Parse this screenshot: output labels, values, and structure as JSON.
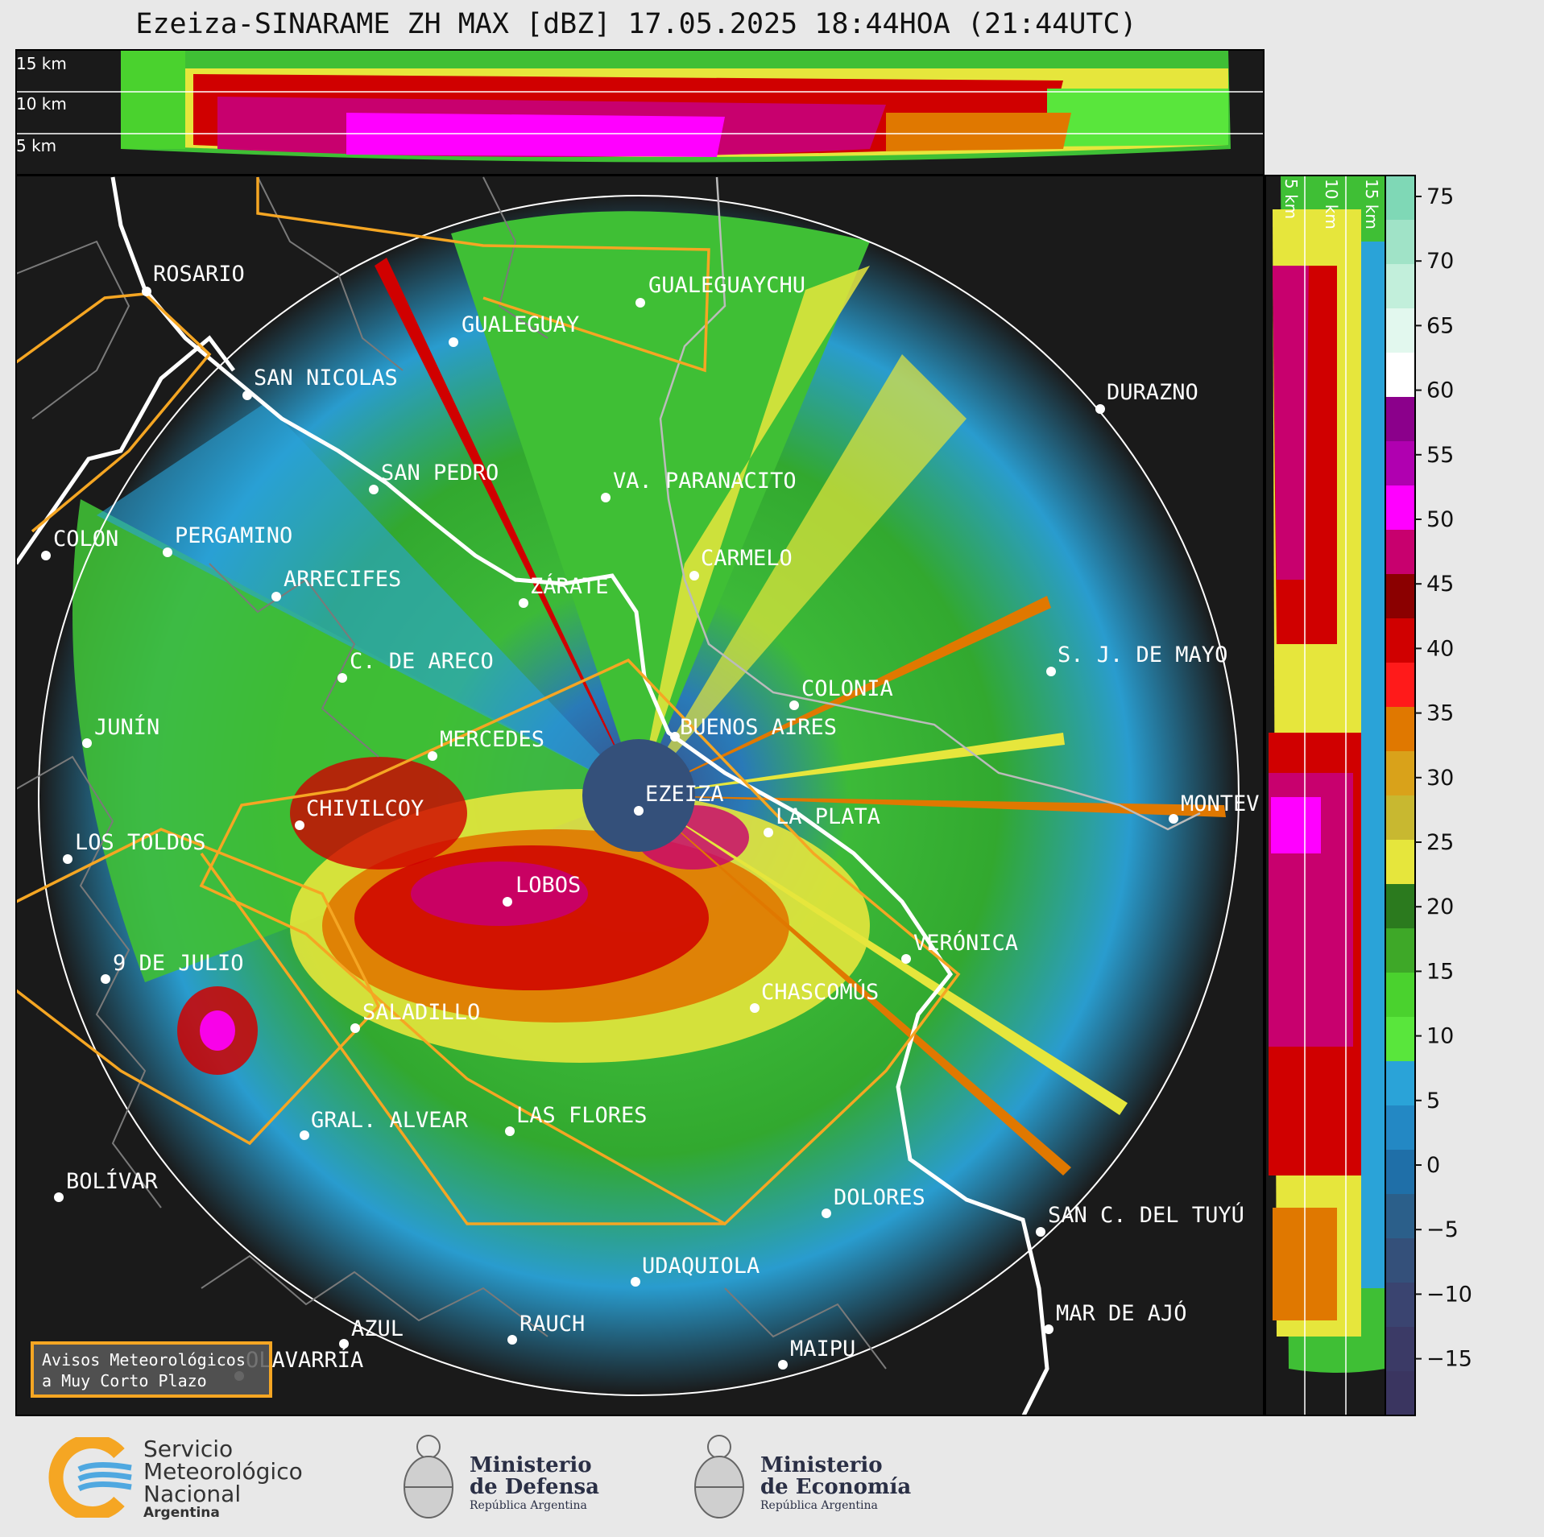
{
  "title": "Ezeiza-SINARAME ZH MAX [dBZ] 17.05.2025 18:44HOA (21:44UTC)",
  "height_labels_top": [
    "15 km",
    "10 km",
    "5 km"
  ],
  "height_labels_side": [
    "5 km",
    "10 km",
    "15 km"
  ],
  "colorbar": {
    "ticks": [
      "75",
      "70",
      "65",
      "60",
      "55",
      "50",
      "45",
      "40",
      "35",
      "30",
      "25",
      "20",
      "15",
      "10",
      "5",
      "0",
      "−5",
      "−10",
      "−15"
    ],
    "colors_top_to_bottom": [
      "#7fd8b6",
      "#a0e3c7",
      "#c2efdb",
      "#e2f8ee",
      "#ffffff",
      "#8b008b",
      "#b000b0",
      "#ff00ff",
      "#c8006e",
      "#8b0000",
      "#d00000",
      "#ff1a1a",
      "#e07800",
      "#d9a21a",
      "#c8b830",
      "#e6e63c",
      "#2b7a1e",
      "#3ea828",
      "#4ad22e",
      "#59e63c",
      "#2aa3d8",
      "#2388c4",
      "#1f6fa8",
      "#2b5f8a",
      "#34507a",
      "#3a4470",
      "#3b3a66",
      "#3a3560"
    ]
  },
  "cities": [
    {
      "name": "ROSARIO"
    },
    {
      "name": "GUALEGUAYCHU"
    },
    {
      "name": "GUALEGUAY"
    },
    {
      "name": "SAN NICOLAS"
    },
    {
      "name": "DURAZNO"
    },
    {
      "name": "SAN PEDRO"
    },
    {
      "name": "VA. PARANACITO"
    },
    {
      "name": "COLON"
    },
    {
      "name": "PERGAMINO"
    },
    {
      "name": "CARMELO"
    },
    {
      "name": "ARRECIFES"
    },
    {
      "name": "ZÁRATE"
    },
    {
      "name": "S. J. DE MAYO"
    },
    {
      "name": "C. DE ARECO"
    },
    {
      "name": "COLONIA"
    },
    {
      "name": "JUNÍN"
    },
    {
      "name": "BUENOS AIRES"
    },
    {
      "name": "MERCEDES"
    },
    {
      "name": "EZEIZA"
    },
    {
      "name": "MONTEV"
    },
    {
      "name": "CHIVILCOY"
    },
    {
      "name": "LA PLATA"
    },
    {
      "name": "LOS TOLDOS"
    },
    {
      "name": "LOBOS"
    },
    {
      "name": "VERÓNICA"
    },
    {
      "name": "9 DE JULIO"
    },
    {
      "name": "CHASCOMÚS"
    },
    {
      "name": "SALADILLO"
    },
    {
      "name": "GRAL. ALVEAR"
    },
    {
      "name": "LAS FLORES"
    },
    {
      "name": "BOLÍVAR"
    },
    {
      "name": "DOLORES"
    },
    {
      "name": "SAN C. DEL TUYÚ"
    },
    {
      "name": "UDAQUIOLA"
    },
    {
      "name": "MAR DE AJÓ"
    },
    {
      "name": "AZUL"
    },
    {
      "name": "RAUCH"
    },
    {
      "name": "MAIPU"
    },
    {
      "name": "OLAVARRÍA"
    }
  ],
  "avisos": {
    "line1": "Avisos Meteorológicos",
    "line2": "a Muy Corto Plazo"
  },
  "logos": {
    "smn": [
      "Servicio",
      "Meteorológico",
      "Nacional",
      "Argentina"
    ],
    "defensa": [
      "Ministerio",
      "de Defensa",
      "República Argentina"
    ],
    "economia": [
      "Ministerio",
      "de Economía",
      "República Argentina"
    ]
  },
  "colors": {
    "background": "#1a1a1a",
    "coast": "#ffffff",
    "alert_outline": "#f5a623"
  }
}
